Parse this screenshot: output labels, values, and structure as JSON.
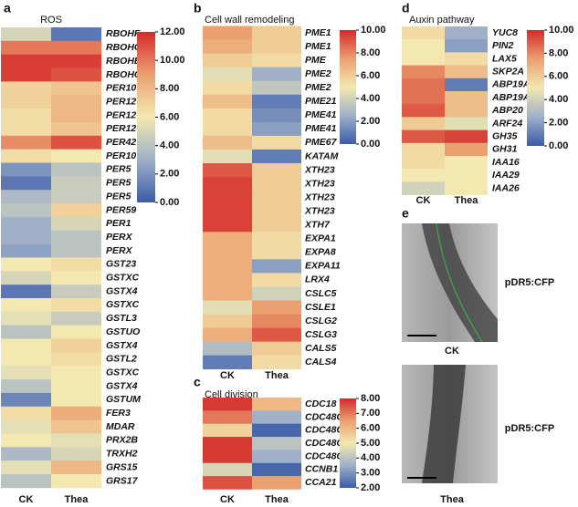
{
  "chart_data": [
    {
      "type": "heatmap",
      "panel": "a",
      "title": "ROS",
      "columns": [
        "CK",
        "Thea"
      ],
      "rows": [
        "RBOHF",
        "RBOHC",
        "RBOHE",
        "RBOHC",
        "PER10",
        "PER12",
        "PER12",
        "PER12",
        "PER42",
        "PER10",
        "PER5",
        "PER5",
        "PER5",
        "PER59",
        "PER1",
        "PERX",
        "PERX",
        "GST23",
        "GSTXC",
        "GSTX4",
        "GSTXC",
        "GSTL3",
        "GSTUO",
        "GSTX4",
        "GSTL2",
        "GSTXC",
        "GSTX4",
        "GSTUM",
        "FER3",
        "MDAR",
        "PRX2B",
        "TRXH2",
        "GRS15",
        "GRS17"
      ],
      "values": [
        [
          5,
          1
        ],
        [
          10,
          10
        ],
        [
          11.5,
          11.5
        ],
        [
          11.5,
          11
        ],
        [
          7,
          7.5
        ],
        [
          7,
          8
        ],
        [
          6.5,
          8
        ],
        [
          6.5,
          7.5
        ],
        [
          9.5,
          11
        ],
        [
          6.5,
          6
        ],
        [
          2,
          4
        ],
        [
          1,
          4.5
        ],
        [
          3.5,
          4.5
        ],
        [
          4,
          7
        ],
        [
          3,
          5
        ],
        [
          3,
          4
        ],
        [
          2.5,
          4
        ],
        [
          6,
          6.5
        ],
        [
          5,
          6
        ],
        [
          1,
          4.5
        ],
        [
          6,
          6.5
        ],
        [
          5.5,
          4.5
        ],
        [
          4,
          6
        ],
        [
          6,
          7
        ],
        [
          6,
          6.5
        ],
        [
          5.5,
          6
        ],
        [
          4,
          6
        ],
        [
          1.5,
          6
        ],
        [
          6.5,
          8.5
        ],
        [
          5.5,
          7.5
        ],
        [
          6,
          5.5
        ],
        [
          3.5,
          5
        ],
        [
          5.5,
          8
        ],
        [
          4,
          6
        ]
      ],
      "zlim": [
        0,
        12
      ],
      "zticks": [
        {
          "value": 0,
          "label": "0.00"
        },
        {
          "value": 2,
          "label": "2.00"
        },
        {
          "value": 4,
          "label": "4.00"
        },
        {
          "value": 6,
          "label": "6.00"
        },
        {
          "value": 8,
          "label": "8.00"
        },
        {
          "value": 10,
          "label": "10.00"
        },
        {
          "value": 12,
          "label": "12.00"
        }
      ]
    },
    {
      "type": "heatmap",
      "panel": "b",
      "title": "Cell wall remodeling",
      "columns": [
        "CK",
        "Thea"
      ],
      "rows": [
        "PME1",
        "PME1",
        "PME",
        "PME2",
        "PME2",
        "PME21",
        "PME41",
        "PME41",
        "PME67",
        "KATAM",
        "XTH23",
        "XTH23",
        "XTH23",
        "XTH23",
        "XTH7",
        "EXPA1",
        "EXPA8",
        "EXPA11",
        "LRX4",
        "CSLC5",
        "CSLE1",
        "CSLG2",
        "CSLG3",
        "CALS5",
        "CALS4"
      ],
      "values": [
        [
          7.5,
          6
        ],
        [
          7,
          6
        ],
        [
          6,
          5.5
        ],
        [
          4.5,
          2.5
        ],
        [
          5.5,
          3.5
        ],
        [
          6.5,
          1
        ],
        [
          5.5,
          1.5
        ],
        [
          5.5,
          2
        ],
        [
          6.5,
          5.5
        ],
        [
          4.5,
          1
        ],
        [
          9,
          6
        ],
        [
          9.5,
          6
        ],
        [
          9.5,
          6
        ],
        [
          9.5,
          6
        ],
        [
          9.5,
          6
        ],
        [
          7,
          5.5
        ],
        [
          7,
          5.5
        ],
        [
          7,
          2
        ],
        [
          7,
          5.5
        ],
        [
          7,
          4
        ],
        [
          4.5,
          7.5
        ],
        [
          6,
          8
        ],
        [
          7,
          9
        ],
        [
          3,
          6
        ],
        [
          1,
          5.5
        ]
      ],
      "zlim": [
        0,
        10
      ],
      "zticks": [
        {
          "value": 0,
          "label": "0.00"
        },
        {
          "value": 2,
          "label": "2.00"
        },
        {
          "value": 4,
          "label": "4.00"
        },
        {
          "value": 6,
          "label": "6.00"
        },
        {
          "value": 8,
          "label": "8.00"
        },
        {
          "value": 10,
          "label": "10.00"
        }
      ]
    },
    {
      "type": "heatmap",
      "panel": "c",
      "title": "Cell division",
      "columns": [
        "CK",
        "Thea"
      ],
      "rows": [
        "CDC18",
        "CDC48C",
        "CDC48C",
        "CDC48C",
        "CDC48C",
        "CCNB1",
        "CCA21"
      ],
      "values": [
        [
          7.8,
          6
        ],
        [
          7,
          3.5
        ],
        [
          5.5,
          2.2
        ],
        [
          7.8,
          4
        ],
        [
          7.8,
          3.5
        ],
        [
          4.5,
          2.2
        ],
        [
          7.5,
          6.5
        ]
      ],
      "zlim": [
        2,
        8
      ],
      "zticks": [
        {
          "value": 2,
          "label": "2.00"
        },
        {
          "value": 3,
          "label": "3.00"
        },
        {
          "value": 4,
          "label": "4.00"
        },
        {
          "value": 5,
          "label": "5.00"
        },
        {
          "value": 6,
          "label": "6.00"
        },
        {
          "value": 7,
          "label": "7.00"
        },
        {
          "value": 8,
          "label": "8.00"
        }
      ]
    },
    {
      "type": "heatmap",
      "panel": "d",
      "title": "Auxin pathway",
      "columns": [
        "CK",
        "Thea"
      ],
      "rows": [
        "YUC8",
        "PIN2",
        "LAX5",
        "SKP2A",
        "ABP19A",
        "ABP19A",
        "ABP20",
        "ARF24",
        "GH35",
        "GH31",
        "IAA16",
        "IAA29",
        "IAA26"
      ],
      "values": [
        [
          5.5,
          2.5
        ],
        [
          5,
          2
        ],
        [
          5,
          5.5
        ],
        [
          8,
          6.5
        ],
        [
          8.5,
          1
        ],
        [
          8.5,
          6.5
        ],
        [
          9,
          6.5
        ],
        [
          6,
          4.5
        ],
        [
          9,
          9.5
        ],
        [
          5.5,
          7.5
        ],
        [
          5.5,
          5
        ],
        [
          5,
          5
        ],
        [
          4,
          5
        ]
      ],
      "zlim": [
        0,
        10
      ],
      "zticks": [
        {
          "value": 0,
          "label": "0.00"
        },
        {
          "value": 2,
          "label": "2.00"
        },
        {
          "value": 4,
          "label": "4.00"
        },
        {
          "value": 6,
          "label": "6.00"
        },
        {
          "value": 8,
          "label": "8.00"
        },
        {
          "value": 10,
          "label": "10.00"
        }
      ]
    }
  ],
  "panel_e": {
    "label": "e",
    "images": [
      {
        "marker": "pDR5:CFP",
        "caption": "CK"
      },
      {
        "marker": "pDR5:CFP",
        "caption": "Thea"
      }
    ]
  }
}
